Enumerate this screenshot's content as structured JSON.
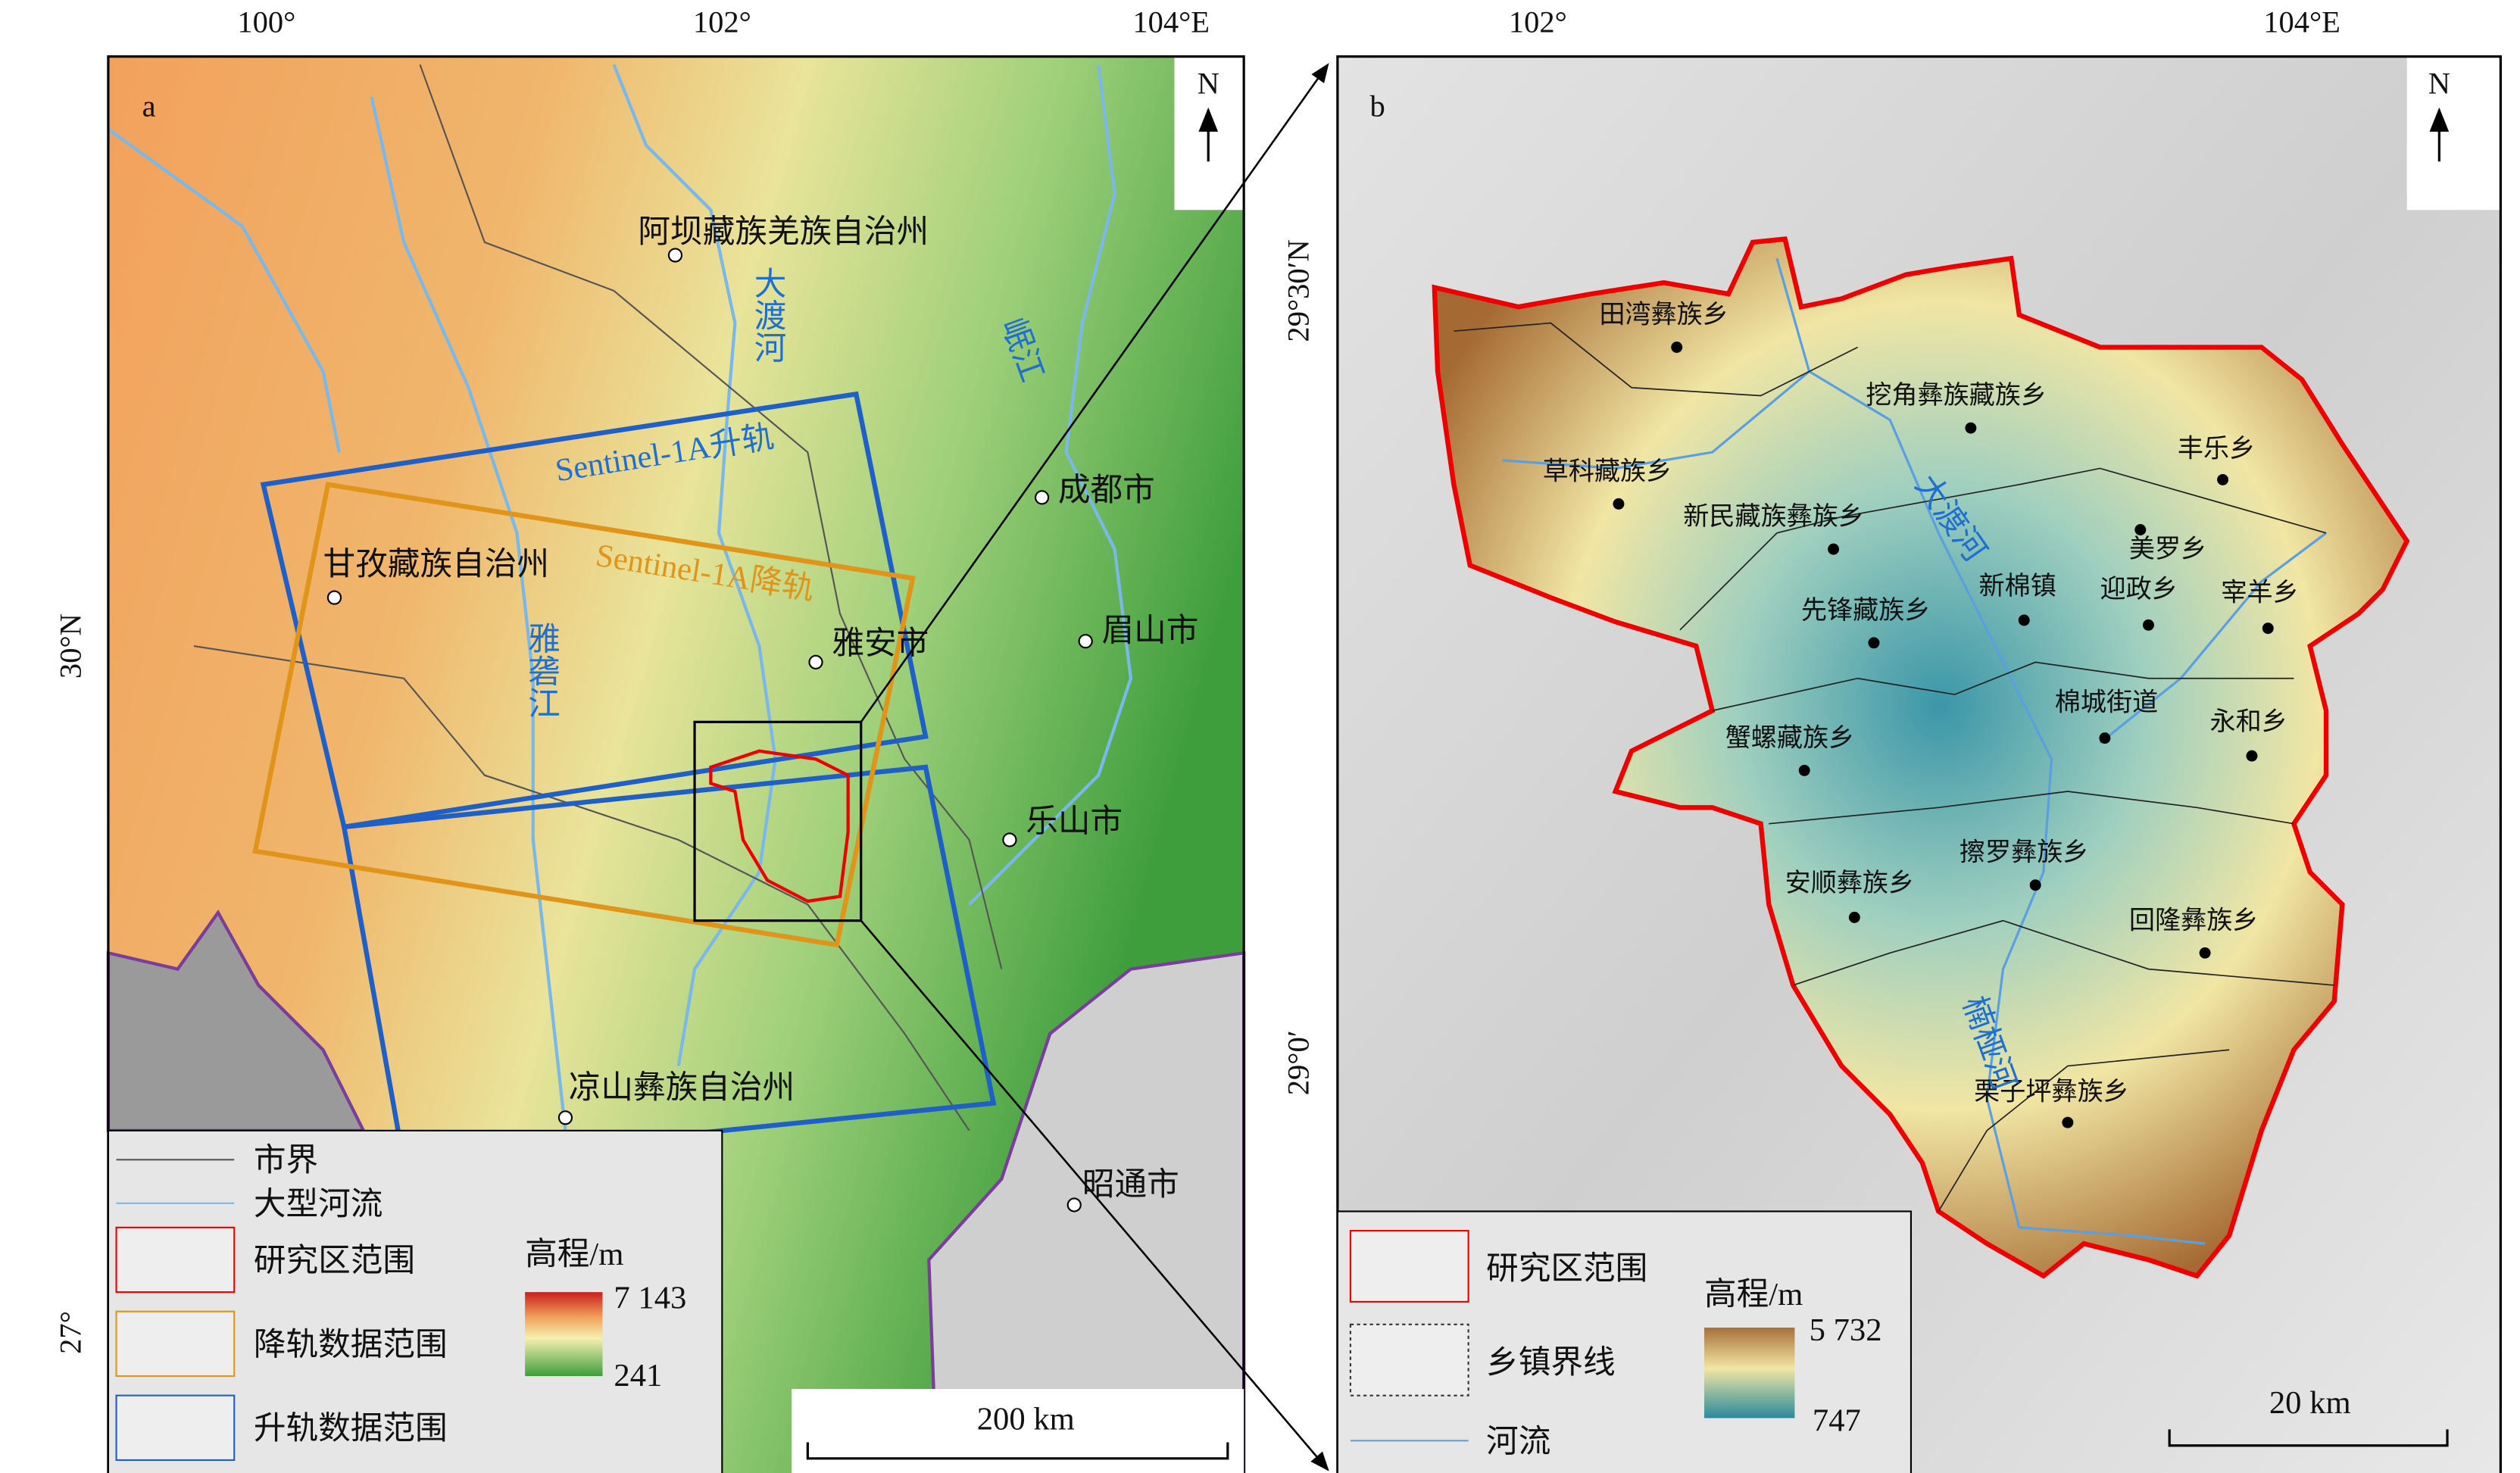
{
  "panel_a": {
    "label": "a",
    "top_ticks": [
      "100°",
      "102°",
      "104°E"
    ],
    "left_ticks": [
      "30°N",
      "27°"
    ],
    "north": "N",
    "places": [
      "阿坝藏族羌族自治州",
      "甘孜藏族自治州",
      "雅安市",
      "成都市",
      "眉山市",
      "乐山市",
      "凉山彝族自治州",
      "昭通市"
    ],
    "rivers": [
      "大渡河",
      "岷江",
      "雅砻江"
    ],
    "tracks": [
      "Sentinel-1A升轨",
      "Sentinel-1A降轨"
    ],
    "legend": {
      "items": [
        "市界",
        "大型河流",
        "研究区范围",
        "降轨数据范围",
        "升轨数据范围"
      ],
      "elevation_title": "高程/m",
      "elevation_max": "7 143",
      "elevation_min": "241"
    },
    "scale": "200 km"
  },
  "panel_b": {
    "label": "b",
    "top_ticks": [
      "102°",
      "104°E"
    ],
    "left_ticks": [
      "29°30′N",
      "29°0′"
    ],
    "north": "N",
    "places": [
      "田湾彝族乡",
      "挖角彝族藏族乡",
      "丰乐乡",
      "草科藏族乡",
      "新民藏族彝族乡",
      "美罗乡",
      "新棉镇",
      "迎政乡",
      "宰羊乡",
      "先锋藏族乡",
      "棉城街道",
      "永和乡",
      "蟹螺藏族乡",
      "擦罗彝族乡",
      "安顺彝族乡",
      "回隆彝族乡",
      "栗子坪彝族乡"
    ],
    "rivers": [
      "大渡河",
      "楠桠河"
    ],
    "legend": {
      "items": [
        "研究区范围",
        "乡镇界线",
        "河流"
      ],
      "elevation_title": "高程/m",
      "elevation_max": "5 732",
      "elevation_min": "747"
    },
    "scale": "20 km"
  }
}
